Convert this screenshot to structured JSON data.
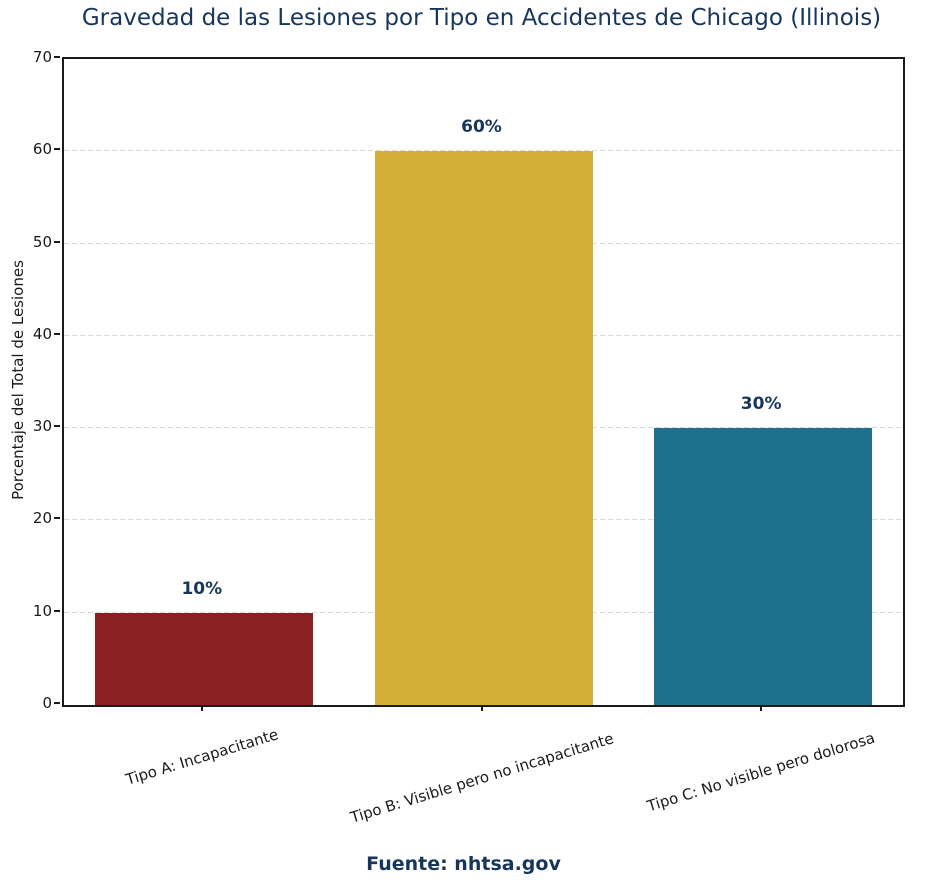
{
  "chart_data": {
    "type": "bar",
    "title": "Gravedad de las Lesiones por Tipo en Accidentes de Chicago (Illinois)",
    "categories": [
      "Tipo A: Incapacitante",
      "Tipo B: Visible pero no incapacitante",
      "Tipo C: No visible pero dolorosa"
    ],
    "values": [
      10,
      60,
      30
    ],
    "value_labels": [
      "10%",
      "60%",
      "30%"
    ],
    "bar_colors": [
      "#8B2020",
      "#D4AF37",
      "#1F708D"
    ],
    "xlabel": "",
    "ylabel": "Porcentaje del Total de Lesiones",
    "ylim": [
      0,
      70
    ],
    "yticks": [
      0,
      10,
      20,
      30,
      40,
      50,
      60,
      70
    ],
    "grid": "horizontal-dashed",
    "legend": "none",
    "colors": {
      "title_text": "#17365C",
      "value_label_text": "#17365C",
      "tick_text": "#1a1a1a",
      "grid": "#d9d9d9",
      "axis": "#1a1a1a",
      "background": "#ffffff"
    }
  },
  "source_label": "Fuente: nhtsa.gov"
}
